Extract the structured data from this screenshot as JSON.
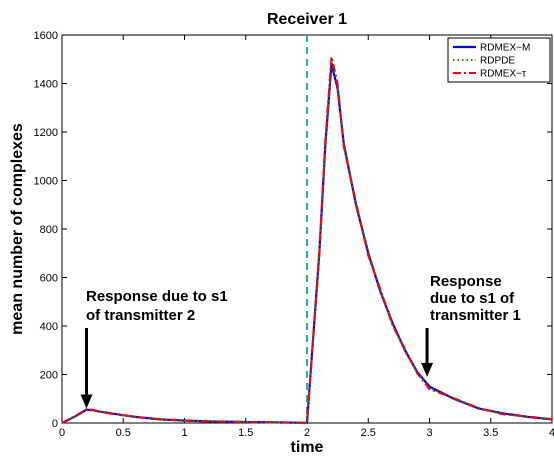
{
  "chart_data": {
    "type": "line",
    "title": "Receiver 1",
    "xlabel": "time",
    "ylabel": "mean number of complexes",
    "xlim": [
      0,
      4
    ],
    "ylim": [
      0,
      1600
    ],
    "x_ticks": [
      0,
      0.5,
      1,
      1.5,
      2,
      2.5,
      3,
      3.5,
      4
    ],
    "x_tick_labels": [
      "0",
      "0.5",
      "1",
      "1.5",
      "2",
      "2.5",
      "3",
      "3.5",
      "4"
    ],
    "y_ticks": [
      0,
      200,
      400,
      600,
      800,
      1000,
      1200,
      1400,
      1600
    ],
    "y_tick_labels": [
      "0",
      "200",
      "400",
      "600",
      "800",
      "1000",
      "1200",
      "1400",
      "1600"
    ],
    "grid": false,
    "legend_position": "top-right",
    "vline": {
      "x": 2,
      "color": "#1fb5ad",
      "style": "dashed"
    },
    "x": [
      0,
      0.1,
      0.2,
      0.25,
      0.3,
      0.4,
      0.5,
      0.6,
      0.8,
      1.0,
      1.2,
      1.5,
      1.8,
      1.99,
      2.0,
      2.1,
      2.15,
      2.2,
      2.25,
      2.3,
      2.4,
      2.5,
      2.6,
      2.7,
      2.8,
      2.9,
      3.0,
      3.2,
      3.4,
      3.6,
      3.8,
      4.0
    ],
    "series": [
      {
        "name": "RDMEX−M",
        "color": "#0000ff",
        "dash": "solid",
        "values": [
          0,
          25,
          55,
          53,
          48,
          40,
          32,
          25,
          15,
          10,
          7,
          4,
          2,
          1,
          0,
          700,
          1150,
          1480,
          1380,
          1150,
          900,
          700,
          540,
          410,
          300,
          210,
          150,
          100,
          60,
          40,
          25,
          15
        ]
      },
      {
        "name": "RDPDE",
        "color": "#00a000",
        "dash": "dotted",
        "values": [
          0,
          25,
          54,
          52,
          47,
          39,
          31,
          24,
          15,
          10,
          7,
          4,
          2,
          1,
          0,
          705,
          1160,
          1490,
          1390,
          1160,
          905,
          705,
          545,
          405,
          295,
          205,
          145,
          98,
          58,
          38,
          24,
          14
        ]
      },
      {
        "name": "RDMEX−τ",
        "color": "#ff0000",
        "dash": "dashdot",
        "values": [
          0,
          27,
          57,
          55,
          47,
          38,
          33,
          24,
          16,
          11,
          6,
          4,
          3,
          1,
          0,
          690,
          1170,
          1510,
          1400,
          1140,
          910,
          690,
          550,
          400,
          305,
          205,
          140,
          102,
          62,
          36,
          27,
          16
        ]
      }
    ],
    "annotations": [
      {
        "lines": [
          "Response due to s1",
          "of transmitter 2"
        ],
        "arrow_x": 0.2,
        "arrow_to_y": 60
      },
      {
        "lines": [
          "Response",
          "due to s1 of",
          "transmitter 1"
        ],
        "arrow_x": 2.98,
        "arrow_to_y": 190
      }
    ]
  }
}
